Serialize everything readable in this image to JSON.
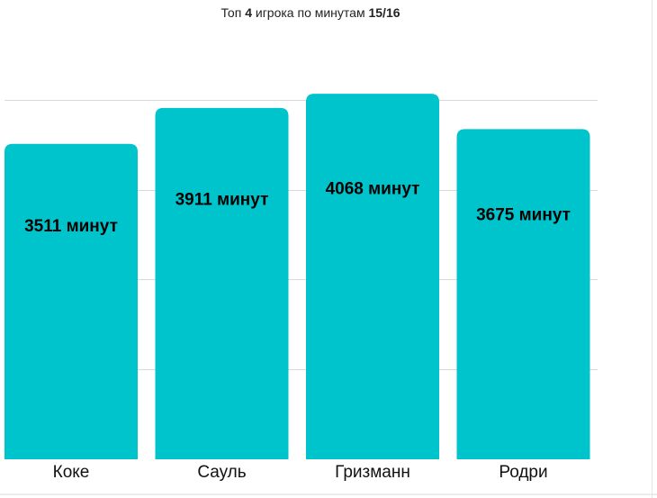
{
  "chart_data": {
    "type": "bar",
    "title_parts": [
      "Топ ",
      "4",
      " игрока по минутам ",
      "15/16"
    ],
    "categories": [
      "Коке",
      "Сауль",
      "Гризманн",
      "Родри"
    ],
    "values": [
      3511,
      3911,
      4068,
      3675
    ],
    "data_labels": [
      "3511 минут",
      "3911 минут",
      "4068 минут",
      "3675 минут"
    ],
    "ylim": [
      0,
      4230
    ],
    "gridlines": [
      1000,
      2000,
      3000,
      4000
    ],
    "grid": true,
    "legend": "none",
    "bar_color": "#00c4cc"
  }
}
